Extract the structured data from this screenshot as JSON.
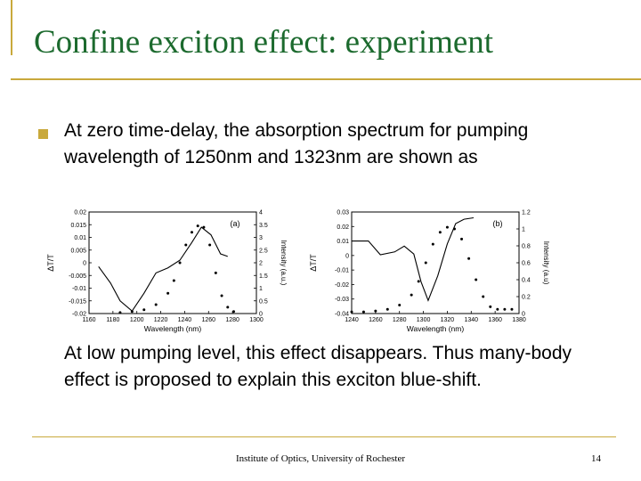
{
  "slide": {
    "title": "Confine exciton effect: experiment",
    "bullet_text": "At zero time-delay, the absorption spectrum for pumping wavelength of 1250nm and 1323nm are shown as",
    "paragraph2": "At low pumping level, this effect disappears. Thus many-body effect is proposed to explain this exciton blue-shift.",
    "footer": "Institute of Optics, University of Rochester",
    "page_number": "14"
  },
  "colors": {
    "title": "#1c6a2e",
    "accent": "#c9a93c"
  },
  "chart_data": [
    {
      "type": "line",
      "panel_label": "(a)",
      "xlabel": "Wavelength (nm)",
      "ylabel_left": "ΔT/T",
      "ylabel_right": "Intensity (a.u.)",
      "xlim": [
        1160,
        1300
      ],
      "ylim_left": [
        -0.02,
        0.02
      ],
      "ylim_right": [
        0,
        4
      ],
      "x_ticks": [
        "1160",
        "1180",
        "1200",
        "1220",
        "1240",
        "1260",
        "1280",
        "1300"
      ],
      "y_left_ticks": [
        "0.02",
        "0.015",
        "0.01",
        "0.005",
        "0",
        "-0.005",
        "-0.01",
        "-0.015",
        "-0.02"
      ],
      "y_right_ticks": [
        "4",
        "3.5",
        "3",
        "2.5",
        "2",
        "1.5",
        "1",
        "0.5",
        "0"
      ],
      "series": [
        {
          "axis": "left",
          "style": "solid",
          "x": [
            1168,
            1178,
            1186,
            1196,
            1206,
            1216,
            1226,
            1236,
            1246,
            1254,
            1262,
            1270,
            1276
          ],
          "y": [
            -0.0015,
            -0.008,
            -0.015,
            -0.019,
            -0.012,
            -0.004,
            -0.002,
            0.001,
            0.008,
            0.014,
            0.011,
            0.0035,
            0.0025
          ]
        },
        {
          "axis": "right",
          "style": "dotted",
          "x": [
            1186,
            1196,
            1206,
            1216,
            1226,
            1231,
            1236,
            1241,
            1246,
            1251,
            1256,
            1261,
            1266,
            1271,
            1276,
            1281
          ],
          "y": [
            0.04,
            0.08,
            0.15,
            0.35,
            0.8,
            1.3,
            2.0,
            2.7,
            3.2,
            3.45,
            3.4,
            2.7,
            1.6,
            0.7,
            0.25,
            0.08
          ]
        }
      ]
    },
    {
      "type": "line",
      "panel_label": "(b)",
      "xlabel": "Wavelength (nm)",
      "ylabel_left": "ΔT/T",
      "ylabel_right": "Intensity (a.u)",
      "xlim": [
        1240,
        1380
      ],
      "ylim_left": [
        -0.04,
        0.03
      ],
      "ylim_right": [
        0,
        1.2
      ],
      "x_ticks": [
        "1240",
        "1260",
        "1280",
        "1300",
        "1320",
        "1340",
        "1360",
        "1380"
      ],
      "y_left_ticks": [
        "0.03",
        "0.02",
        "0.01",
        "0",
        "-0.01",
        "-0.02",
        "-0.03",
        "-0.04"
      ],
      "y_right_ticks": [
        "1.2",
        "1",
        "0.8",
        "0.6",
        "0.4",
        "0.2",
        "0"
      ],
      "series": [
        {
          "axis": "left",
          "style": "solid",
          "x": [
            1240,
            1254,
            1264,
            1276,
            1284,
            1292,
            1298,
            1304,
            1312,
            1320,
            1327,
            1334,
            1342
          ],
          "y": [
            0.01,
            0.01,
            0.0005,
            0.0025,
            0.0065,
            0.001,
            -0.018,
            -0.031,
            -0.014,
            0.008,
            0.022,
            0.025,
            0.026
          ]
        },
        {
          "axis": "right",
          "style": "dotted",
          "x": [
            1240,
            1250,
            1260,
            1270,
            1280,
            1290,
            1296,
            1302,
            1308,
            1314,
            1320,
            1326,
            1332,
            1338,
            1344,
            1350,
            1356,
            1362,
            1368,
            1374
          ],
          "y": [
            0.02,
            0.02,
            0.03,
            0.05,
            0.1,
            0.22,
            0.38,
            0.6,
            0.82,
            0.96,
            1.02,
            1.0,
            0.88,
            0.65,
            0.4,
            0.2,
            0.08,
            0.05,
            0.05,
            0.05
          ]
        }
      ]
    }
  ]
}
